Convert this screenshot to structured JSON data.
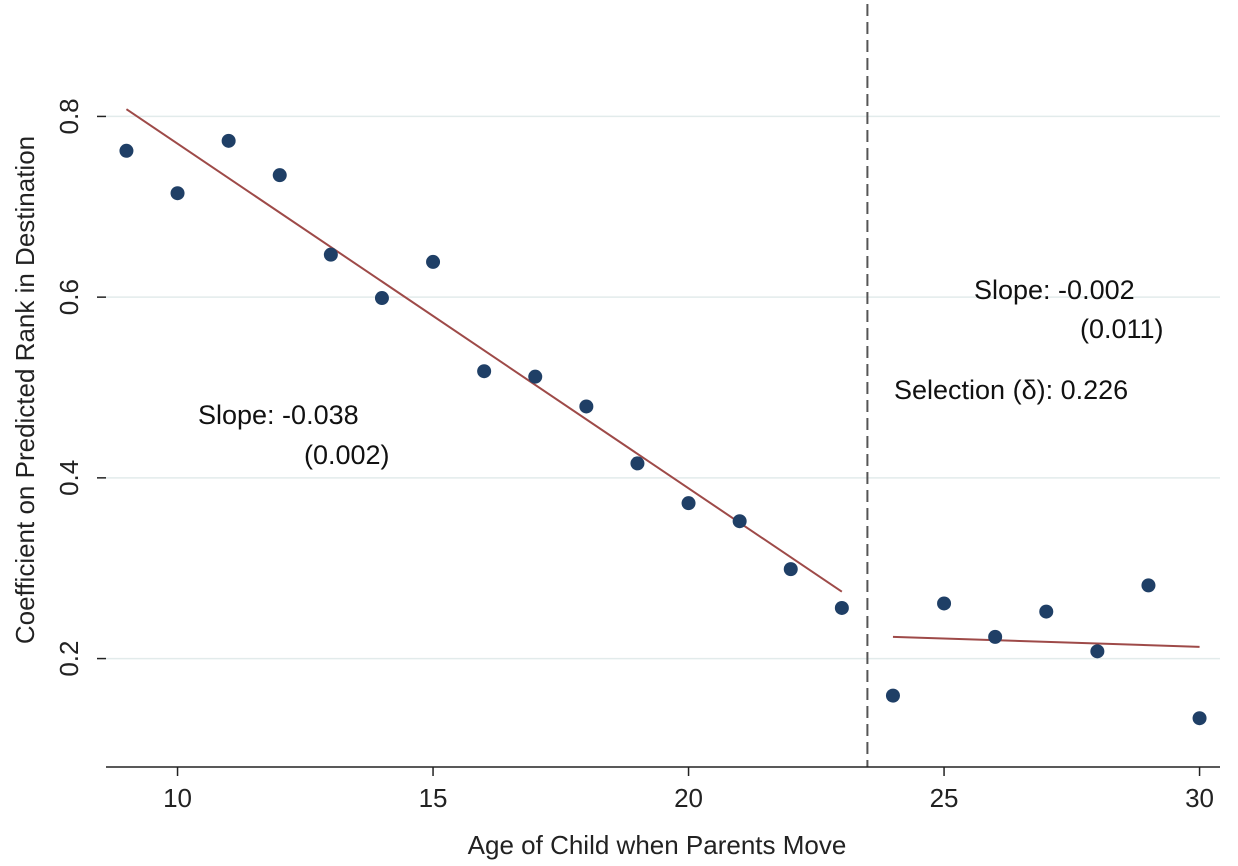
{
  "chart_data": {
    "type": "scatter",
    "xlabel": "Age of Child when Parents Move",
    "ylabel": "Coefficient on Predicted Rank in Destination",
    "xlim": [
      8.6,
      30.4
    ],
    "ylim": [
      0.08,
      0.92
    ],
    "x_ticks": [
      10,
      15,
      20,
      25,
      30
    ],
    "y_ticks": [
      0.2,
      0.4,
      0.6,
      0.8
    ],
    "x_tick_labels": [
      "10",
      "15",
      "20",
      "25",
      "30"
    ],
    "y_tick_labels": [
      "0.2",
      "0.4",
      "0.6",
      "0.8"
    ],
    "grid": "horizontal",
    "points": {
      "x": [
        9,
        10,
        11,
        12,
        13,
        14,
        15,
        16,
        17,
        18,
        19,
        20,
        21,
        22,
        23,
        24,
        25,
        26,
        27,
        28,
        29,
        30
      ],
      "y": [
        0.762,
        0.715,
        0.773,
        0.735,
        0.647,
        0.599,
        0.639,
        0.518,
        0.512,
        0.479,
        0.416,
        0.372,
        0.352,
        0.299,
        0.256,
        0.159,
        0.261,
        0.224,
        0.252,
        0.208,
        0.281,
        0.134
      ]
    },
    "fit_lines": [
      {
        "x": [
          9,
          23
        ],
        "y": [
          0.808,
          0.274
        ]
      },
      {
        "x": [
          24,
          30
        ],
        "y": [
          0.224,
          0.213
        ]
      }
    ],
    "cutoff_x": 23.5,
    "annotations": {
      "left_slope": "Slope:  -0.038",
      "left_se": "(0.002)",
      "right_slope": "Slope:  -0.002",
      "right_se": "(0.011)",
      "selection": "Selection (δ): 0.226"
    },
    "colors": {
      "points": "#1f3f66",
      "fit_line": "#9e4a48",
      "grid": "#e2ebeb",
      "axis": "#222222",
      "cutoff": "#555555"
    }
  }
}
